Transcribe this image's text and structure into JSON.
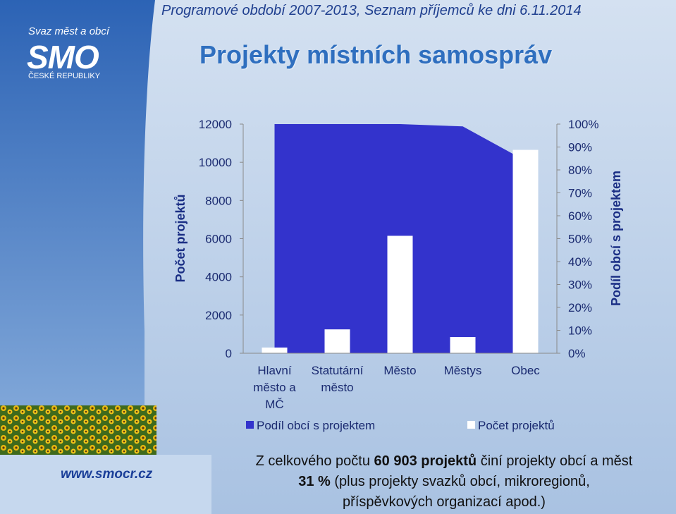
{
  "header": {
    "program_line": "Programové období 2007-2013, Seznam příjemců ke dni 6.11.2014",
    "title": "Projekty místních samospráv"
  },
  "logo": {
    "top_text": "Svaz měst a obcí",
    "main_text": "SMO",
    "bottom_text": "ČESKÉ REPUBLIKY"
  },
  "website": "www.smocr.cz",
  "colors": {
    "area_series": "#3333cc",
    "bar_series": "#ffffff",
    "axis_text": "#1a2a70"
  },
  "chart_data": {
    "type": "bar",
    "categories": [
      [
        "Hlavní",
        "město a",
        "MČ"
      ],
      [
        "Statutární",
        "město"
      ],
      [
        "Město"
      ],
      [
        "Městys"
      ],
      [
        "Obec"
      ]
    ],
    "series": [
      {
        "name": "Podíl obcí s projektem",
        "type": "area",
        "axis": "right",
        "values": [
          100,
          100,
          100,
          99,
          84
        ]
      },
      {
        "name": "Počet projektů",
        "type": "bar",
        "axis": "left",
        "values": [
          300,
          1250,
          6150,
          850,
          10650
        ]
      }
    ],
    "y_left": {
      "label": "Počet projektů",
      "ylim": [
        0,
        12000
      ],
      "ticks": [
        "0",
        "2000",
        "4000",
        "6000",
        "8000",
        "10000",
        "12000"
      ]
    },
    "y_right": {
      "label": "Podíl obcí s projektem",
      "ylim": [
        0,
        100
      ],
      "ticks": [
        "0%",
        "10%",
        "20%",
        "30%",
        "40%",
        "50%",
        "60%",
        "70%",
        "80%",
        "90%",
        "100%"
      ]
    },
    "legend_placement": "bottom",
    "grid": false
  },
  "summary": {
    "line1_pre": "Z celkového počtu ",
    "line1_bold": "60 903 projektů",
    "line1_post": " činí projekty obcí a měst",
    "line2_bold": "31 %",
    "line2_post": " (plus projekty svazků obcí, mikroregionů,",
    "line3": "příspěvkových organizací apod.)"
  }
}
